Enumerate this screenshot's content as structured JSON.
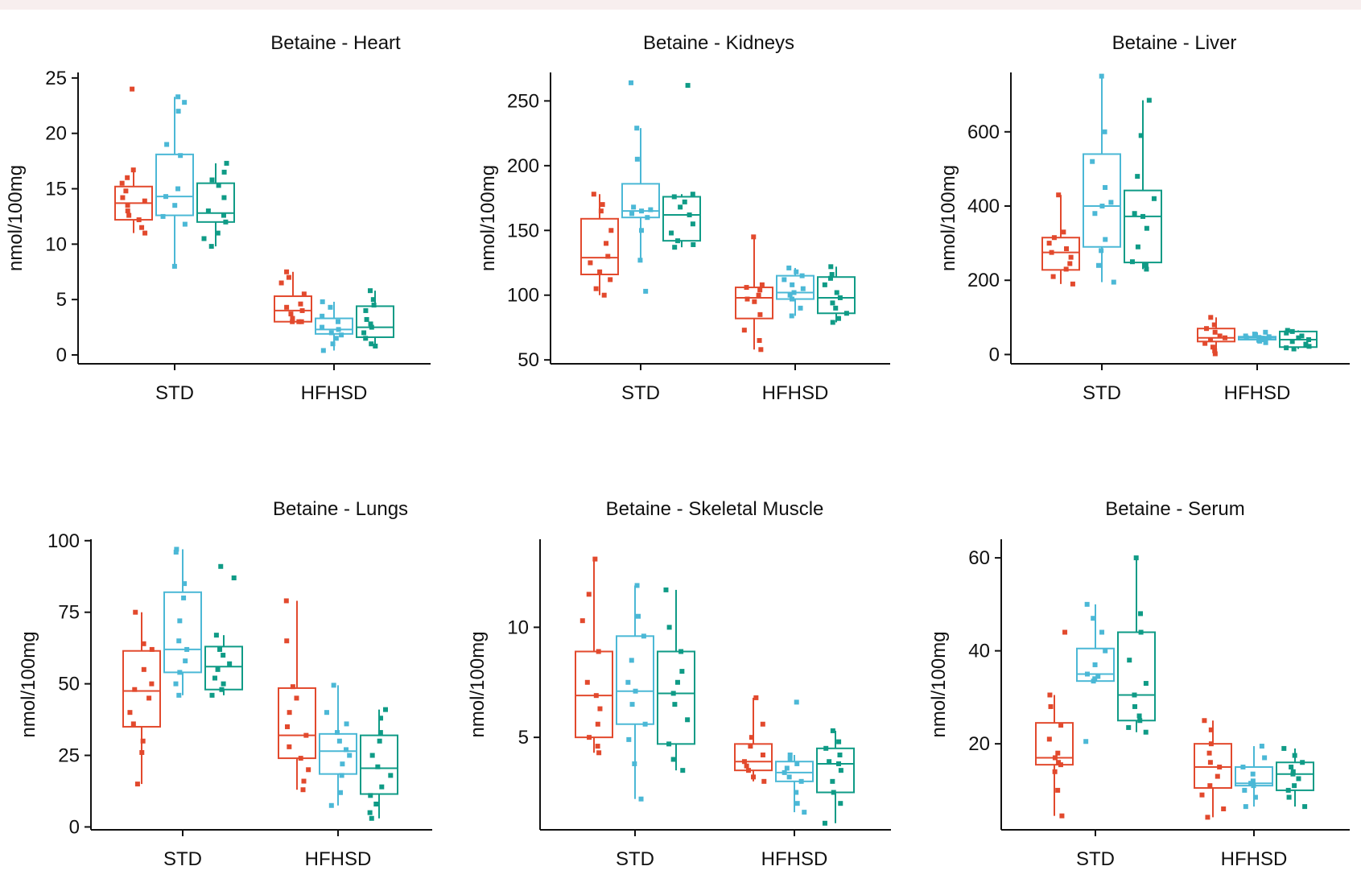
{
  "colors": {
    "group_1": "#e2492d",
    "group_2": "#4bb8d6",
    "group_3": "#0f9b86",
    "axis": "#111111",
    "band": "#f7eeee"
  },
  "y_axis_label": "nmol/100mg",
  "chart_data": [
    {
      "type": "box",
      "title": "Betaine  - Heart",
      "ylabel": "nmol/100mg",
      "categories": [
        "STD",
        "HFHSD"
      ],
      "ylim": [
        -0.8,
        25.5
      ],
      "yticks": [
        0,
        5,
        10,
        15,
        20,
        25
      ],
      "series": [
        {
          "color": "#e2492d",
          "boxes": [
            {
              "min": 11.0,
              "q1": 12.2,
              "median": 13.7,
              "q3": 15.2,
              "max": 16.7,
              "points": [
                24.0,
                16.7,
                16.0,
                15.5,
                14.8,
                14.2,
                13.9,
                13.5,
                13.0,
                12.6,
                12.2,
                11.5,
                11.0
              ]
            },
            {
              "min": 3.0,
              "q1": 3.0,
              "median": 4.0,
              "q3": 5.3,
              "max": 7.5,
              "points": [
                7.5,
                7.0,
                6.5,
                5.5,
                4.6,
                4.3,
                4.0,
                3.7,
                3.3,
                3.0,
                3.0,
                3.0
              ]
            }
          ]
        },
        {
          "color": "#4bb8d6",
          "boxes": [
            {
              "min": 8.0,
              "q1": 12.6,
              "median": 14.3,
              "q3": 18.1,
              "max": 23.3,
              "points": [
                23.3,
                22.8,
                22.0,
                19.0,
                18.0,
                15.0,
                14.3,
                13.5,
                12.5,
                11.8,
                8.0
              ]
            },
            {
              "min": 0.4,
              "q1": 1.9,
              "median": 2.3,
              "q3": 3.3,
              "max": 4.8,
              "points": [
                4.8,
                4.3,
                3.5,
                3.0,
                2.5,
                2.3,
                2.0,
                1.8,
                1.5,
                1.0,
                0.4
              ]
            }
          ]
        },
        {
          "color": "#0f9b86",
          "boxes": [
            {
              "min": 9.8,
              "q1": 12.0,
              "median": 12.8,
              "q3": 15.5,
              "max": 17.3,
              "points": [
                17.3,
                16.5,
                15.8,
                15.3,
                14.2,
                13.0,
                12.6,
                12.0,
                11.0,
                10.5,
                9.8
              ]
            },
            {
              "min": 0.8,
              "q1": 1.6,
              "median": 2.5,
              "q3": 4.4,
              "max": 5.8,
              "points": [
                5.8,
                5.0,
                4.5,
                4.0,
                3.2,
                2.8,
                2.5,
                2.0,
                1.5,
                1.0,
                0.8
              ]
            }
          ]
        }
      ]
    },
    {
      "type": "box",
      "title": "Betaine  - Kidneys",
      "ylabel": "nmol/100mg",
      "categories": [
        "STD",
        "HFHSD"
      ],
      "ylim": [
        47,
        272
      ],
      "yticks": [
        50,
        100,
        150,
        200,
        250
      ],
      "series": [
        {
          "color": "#e2492d",
          "boxes": [
            {
              "min": 100,
              "q1": 116,
              "median": 129,
              "q3": 159,
              "max": 178,
              "points": [
                178,
                170,
                165,
                150,
                140,
                130,
                125,
                118,
                112,
                105,
                100
              ]
            },
            {
              "min": 58,
              "q1": 82,
              "median": 98,
              "q3": 106,
              "max": 145,
              "points": [
                145,
                108,
                106,
                104,
                100,
                97,
                95,
                85,
                73,
                65,
                58
              ]
            }
          ]
        },
        {
          "color": "#4bb8d6",
          "boxes": [
            {
              "min": 127,
              "q1": 160,
              "median": 165,
              "q3": 186,
              "max": 229,
              "points": [
                264,
                229,
                205,
                168,
                166,
                165,
                163,
                160,
                150,
                127,
                103
              ]
            },
            {
              "min": 84,
              "q1": 97,
              "median": 102,
              "q3": 115,
              "max": 121,
              "points": [
                121,
                118,
                115,
                112,
                108,
                105,
                102,
                100,
                97,
                90,
                84
              ]
            }
          ]
        },
        {
          "color": "#0f9b86",
          "boxes": [
            {
              "min": 137,
              "q1": 142,
              "median": 162,
              "q3": 176,
              "max": 178,
              "points": [
                262,
                178,
                176,
                172,
                168,
                162,
                155,
                148,
                142,
                139,
                137
              ]
            },
            {
              "min": 79,
              "q1": 86,
              "median": 98,
              "q3": 114,
              "max": 122,
              "points": [
                122,
                116,
                113,
                108,
                102,
                98,
                94,
                90,
                86,
                82,
                79
              ]
            }
          ]
        }
      ]
    },
    {
      "type": "box",
      "title": "Betaine  - Liver",
      "ylabel": "nmol/100mg",
      "categories": [
        "STD",
        "HFHSD"
      ],
      "ylim": [
        -25,
        760
      ],
      "yticks": [
        0,
        200,
        400,
        600
      ],
      "series": [
        {
          "color": "#e2492d",
          "boxes": [
            {
              "min": 190,
              "q1": 228,
              "median": 275,
              "q3": 315,
              "max": 430,
              "points": [
                430,
                330,
                315,
                300,
                285,
                275,
                262,
                245,
                230,
                210,
                190
              ]
            },
            {
              "min": 2,
              "q1": 35,
              "median": 45,
              "q3": 70,
              "max": 100,
              "points": [
                100,
                80,
                70,
                60,
                50,
                45,
                40,
                30,
                20,
                10,
                2
              ]
            }
          ]
        },
        {
          "color": "#4bb8d6",
          "boxes": [
            {
              "min": 195,
              "q1": 290,
              "median": 400,
              "q3": 540,
              "max": 750,
              "points": [
                750,
                600,
                520,
                450,
                410,
                400,
                380,
                310,
                280,
                240,
                195
              ]
            },
            {
              "min": 32,
              "q1": 40,
              "median": 45,
              "q3": 48,
              "max": 60,
              "points": [
                60,
                55,
                50,
                48,
                46,
                45,
                44,
                42,
                40,
                36,
                32
              ]
            }
          ]
        },
        {
          "color": "#0f9b86",
          "boxes": [
            {
              "min": 230,
              "q1": 248,
              "median": 372,
              "q3": 442,
              "max": 685,
              "points": [
                685,
                590,
                480,
                420,
                380,
                372,
                340,
                290,
                250,
                240,
                230
              ]
            },
            {
              "min": 15,
              "q1": 20,
              "median": 40,
              "q3": 62,
              "max": 65,
              "points": [
                65,
                62,
                58,
                50,
                45,
                40,
                35,
                28,
                22,
                18,
                15
              ]
            }
          ]
        }
      ]
    },
    {
      "type": "box",
      "title": "Betaine  - Lungs",
      "ylabel": "nmol/100mg",
      "categories": [
        "STD",
        "HFHSD"
      ],
      "ylim": [
        -1,
        100.5
      ],
      "yticks": [
        0,
        25,
        50,
        75,
        100
      ],
      "series": [
        {
          "color": "#e2492d",
          "boxes": [
            {
              "min": 15,
              "q1": 35,
              "median": 47.5,
              "q3": 61.5,
              "max": 75,
              "points": [
                75,
                64,
                62,
                55,
                50,
                48,
                45,
                40,
                36,
                30,
                26,
                15
              ]
            },
            {
              "min": 13,
              "q1": 24,
              "median": 32,
              "q3": 48.5,
              "max": 79,
              "points": [
                79,
                65,
                49,
                45,
                40,
                35,
                32,
                28,
                24,
                20,
                16,
                13
              ]
            }
          ]
        },
        {
          "color": "#4bb8d6",
          "boxes": [
            {
              "min": 46,
              "q1": 54,
              "median": 62,
              "q3": 82,
              "max": 97,
              "points": [
                97,
                96,
                85,
                80,
                72,
                65,
                62,
                58,
                54,
                50,
                46
              ]
            },
            {
              "min": 7.5,
              "q1": 18.5,
              "median": 26.5,
              "q3": 32.5,
              "max": 49.5,
              "points": [
                49.5,
                40,
                36,
                33,
                30,
                27,
                25,
                22,
                18,
                12,
                7.5
              ]
            }
          ]
        },
        {
          "color": "#0f9b86",
          "boxes": [
            {
              "min": 46,
              "q1": 48,
              "median": 56,
              "q3": 63,
              "max": 67,
              "points": [
                91,
                87,
                67,
                62,
                60,
                57,
                55,
                52,
                50,
                48,
                46
              ]
            },
            {
              "min": 3,
              "q1": 11.5,
              "median": 20.5,
              "q3": 32,
              "max": 41,
              "points": [
                41,
                38,
                33,
                30,
                25,
                21,
                18,
                14,
                11,
                8,
                5,
                3
              ]
            }
          ]
        }
      ]
    },
    {
      "type": "box",
      "title": "Betaine  - Skeletal Muscle",
      "ylabel": "nmol/100mg",
      "categories": [
        "STD",
        "HFHSD"
      ],
      "ylim": [
        0.8,
        14.0
      ],
      "yticks": [
        5,
        10
      ],
      "series": [
        {
          "color": "#e2492d",
          "boxes": [
            {
              "min": 4.3,
              "q1": 5.0,
              "median": 6.9,
              "q3": 8.9,
              "max": 13.1,
              "points": [
                13.1,
                11.5,
                10.3,
                8.9,
                7.5,
                6.9,
                6.3,
                5.6,
                5.0,
                4.6,
                4.3
              ]
            },
            {
              "min": 3.0,
              "q1": 3.5,
              "median": 3.9,
              "q3": 4.7,
              "max": 6.8,
              "points": [
                6.8,
                5.6,
                5.0,
                4.6,
                4.2,
                3.9,
                3.7,
                3.5,
                3.2,
                3.0
              ]
            }
          ]
        },
        {
          "color": "#4bb8d6",
          "boxes": [
            {
              "min": 2.2,
              "q1": 5.6,
              "median": 7.1,
              "q3": 9.6,
              "max": 11.9,
              "points": [
                11.9,
                10.5,
                9.6,
                8.5,
                7.5,
                7.1,
                6.5,
                5.6,
                4.9,
                3.8,
                2.2
              ]
            },
            {
              "min": 1.6,
              "q1": 3.0,
              "median": 3.4,
              "q3": 3.9,
              "max": 4.2,
              "points": [
                6.6,
                4.2,
                4.0,
                3.8,
                3.6,
                3.4,
                3.2,
                3.0,
                2.5,
                2.0,
                1.6
              ]
            }
          ]
        },
        {
          "color": "#0f9b86",
          "boxes": [
            {
              "min": 3.5,
              "q1": 4.7,
              "median": 7.0,
              "q3": 8.9,
              "max": 11.7,
              "points": [
                11.7,
                10.0,
                8.9,
                8.0,
                7.5,
                7.0,
                6.5,
                5.8,
                4.7,
                4.0,
                3.5
              ]
            },
            {
              "min": 1.1,
              "q1": 2.5,
              "median": 3.8,
              "q3": 4.5,
              "max": 5.3,
              "points": [
                5.3,
                4.8,
                4.5,
                4.2,
                3.9,
                3.8,
                3.5,
                3.0,
                2.5,
                2.0,
                1.1
              ]
            }
          ]
        }
      ]
    },
    {
      "type": "box",
      "title": "Betaine  - Serum",
      "ylabel": "nmol/100mg",
      "categories": [
        "STD",
        "HFHSD"
      ],
      "ylim": [
        1.5,
        64.0
      ],
      "yticks": [
        20,
        40,
        60
      ],
      "series": [
        {
          "color": "#e2492d",
          "boxes": [
            {
              "min": 4.5,
              "q1": 15.5,
              "median": 17,
              "q3": 24.5,
              "max": 30.5,
              "points": [
                44,
                30.5,
                28,
                24,
                21,
                18,
                17,
                16,
                15.5,
                14,
                10,
                4.5
              ]
            },
            {
              "min": 4.2,
              "q1": 10.5,
              "median": 15,
              "q3": 20,
              "max": 25,
              "points": [
                25,
                23,
                20,
                18,
                16,
                15,
                13,
                11,
                9,
                6,
                4.2
              ]
            }
          ]
        },
        {
          "color": "#4bb8d6",
          "boxes": [
            {
              "min": 33.5,
              "q1": 33.5,
              "median": 35,
              "q3": 40.5,
              "max": 50,
              "points": [
                50,
                47,
                44,
                40,
                37,
                35,
                34.5,
                34,
                33.5,
                20.5
              ]
            },
            {
              "min": 6.5,
              "q1": 11,
              "median": 11.5,
              "q3": 15,
              "max": 19.5,
              "points": [
                19.5,
                17,
                15,
                13.5,
                12,
                11.5,
                11,
                10,
                8.5,
                6.5
              ]
            }
          ]
        },
        {
          "color": "#0f9b86",
          "boxes": [
            {
              "min": 22.5,
              "q1": 25,
              "median": 30.5,
              "q3": 44,
              "max": 60,
              "points": [
                60,
                48,
                44,
                38,
                33,
                30.5,
                28,
                26,
                25,
                23.5,
                22.5
              ]
            },
            {
              "min": 6.5,
              "q1": 10,
              "median": 13.5,
              "q3": 16,
              "max": 19,
              "points": [
                19,
                17.5,
                16,
                15,
                14,
                13.5,
                12.5,
                11,
                10,
                8.5,
                6.5
              ]
            }
          ]
        }
      ]
    }
  ]
}
